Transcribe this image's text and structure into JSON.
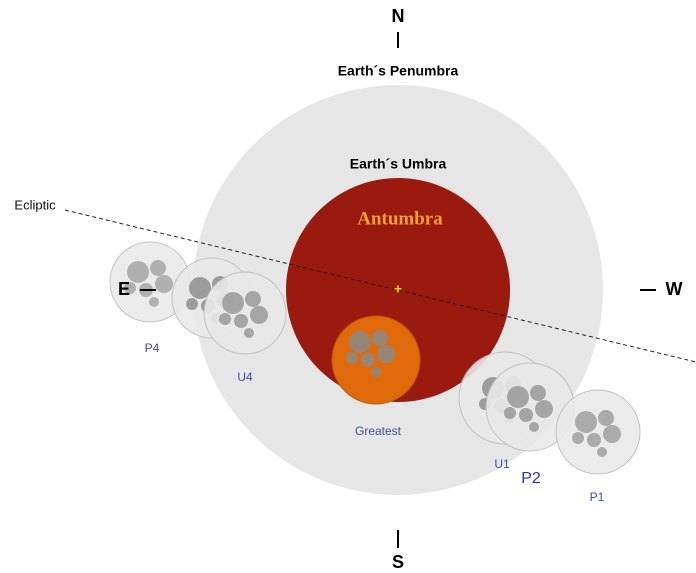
{
  "compass": {
    "north": "N",
    "south": "S",
    "east": "E",
    "west": "W"
  },
  "regions": {
    "penumbra": "Earth´s Penumbra",
    "umbra": "Earth´s Umbra",
    "antumbra": "Antumbra"
  },
  "ecliptic": "Ecliptic",
  "center_mark": "+",
  "positions": {
    "p4": "P4",
    "u4": "U4",
    "greatest": "Greatest",
    "u1": "U1",
    "p2": "P2",
    "p1": "P1"
  }
}
